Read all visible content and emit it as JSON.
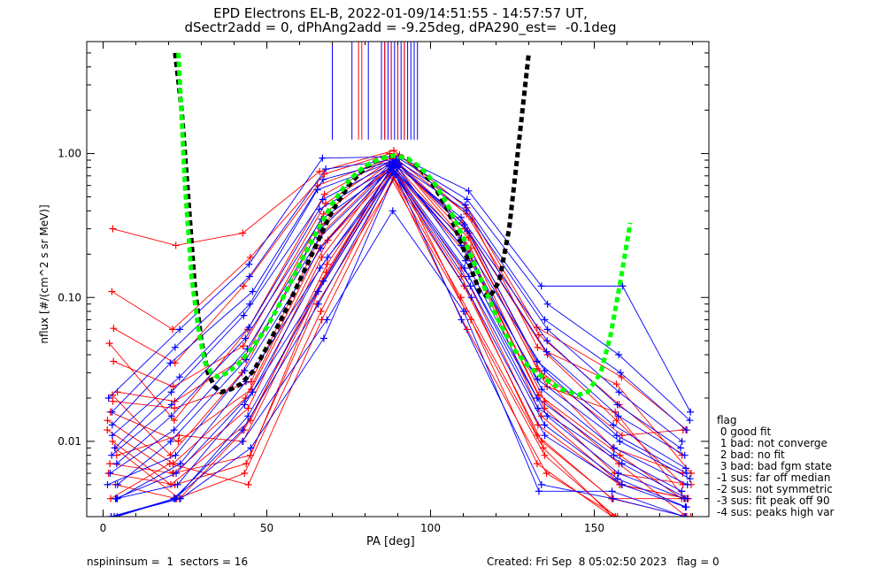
{
  "title": {
    "line1": "EPD Electrons EL-B, 2022-01-09/14:51:55 - 14:57:57 UT,",
    "line2": "dSectr2add = 0, dPhAng2add = -9.25deg, dPA290_est=  -0.1deg"
  },
  "footer": {
    "left": "nspininsum =  1  sectors = 16",
    "right": "Created: Fri Sep  8 05:02:50 2023   flag = 0"
  },
  "legend": {
    "title": "flag",
    "items": [
      " 0 good fit",
      " 1 bad: not converge",
      " 2 bad: no fit",
      " 3 bad: bad fgm state",
      "-1 sus: far off median",
      "-2 sus: not symmetric",
      "-3 sus: fit peak off 90",
      "-4 sus: peaks high var"
    ]
  },
  "colors": {
    "red": "#ff0000",
    "blue": "#0000ff",
    "green": "#00ff00",
    "black": "#000000"
  },
  "chart_data": {
    "type": "line",
    "xlabel": "PA [deg]",
    "ylabel": "nflux [#/(cm^2 s sr MeV)]",
    "xlim": [
      -5,
      185
    ],
    "ylim": [
      0.003,
      6.0
    ],
    "yscale": "log",
    "xticks": [
      0,
      50,
      100,
      150
    ],
    "xtick_labels": [
      "0",
      "50",
      "100",
      "150"
    ],
    "yticks": [
      0.01,
      0.1,
      1.0
    ],
    "ytick_labels": [
      "0.01",
      "0.10",
      "1.00"
    ],
    "pa_bins": [
      3,
      22,
      44,
      67,
      89,
      111,
      134,
      157,
      178
    ],
    "red_series": [
      [
        0.3,
        0.23,
        0.28,
        0.75,
        1.05,
        0.42,
        0.062,
        0.028,
        0.012
      ],
      [
        0.11,
        0.06,
        0.19,
        0.72,
        1.0,
        0.38,
        0.055,
        0.018,
        0.008
      ],
      [
        0.061,
        0.035,
        0.12,
        0.6,
        0.98,
        0.35,
        0.045,
        0.025,
        0.006
      ],
      [
        0.048,
        0.014,
        0.06,
        0.52,
        0.95,
        0.33,
        0.04,
        0.014,
        0.005
      ],
      [
        0.036,
        0.024,
        0.046,
        0.45,
        0.92,
        0.3,
        0.032,
        0.011,
        0.012
      ],
      [
        0.022,
        0.019,
        0.038,
        0.38,
        0.9,
        0.28,
        0.028,
        0.009,
        0.006
      ],
      [
        0.021,
        0.008,
        0.03,
        0.32,
        0.88,
        0.26,
        0.024,
        0.016,
        0.004
      ],
      [
        0.019,
        0.017,
        0.026,
        0.28,
        0.86,
        0.24,
        0.021,
        0.008,
        0.004
      ],
      [
        0.016,
        0.01,
        0.023,
        0.25,
        0.85,
        0.22,
        0.019,
        0.007,
        0.003
      ],
      [
        0.014,
        0.007,
        0.02,
        0.22,
        0.83,
        0.2,
        0.017,
        0.006,
        0.005
      ],
      [
        0.012,
        0.006,
        0.017,
        0.19,
        0.82,
        0.18,
        0.015,
        0.005,
        0.004
      ],
      [
        0.01,
        0.005,
        0.014,
        0.17,
        0.8,
        0.16,
        0.013,
        0.005,
        0.004
      ],
      [
        0.009,
        0.004,
        0.012,
        0.15,
        0.78,
        0.14,
        0.011,
        0.004,
        0.003
      ],
      [
        0.008,
        0.011,
        0.01,
        0.13,
        0.76,
        0.12,
        0.01,
        0.004,
        0.004
      ],
      [
        0.007,
        0.006,
        0.008,
        0.11,
        0.74,
        0.1,
        0.009,
        0.003,
        0.003
      ],
      [
        0.006,
        0.005,
        0.007,
        0.09,
        0.72,
        0.08,
        0.008,
        0.003,
        0.003
      ],
      [
        0.005,
        0.004,
        0.006,
        0.08,
        0.7,
        0.07,
        0.007,
        0.003,
        0.003
      ],
      [
        0.004,
        0.007,
        0.005,
        0.07,
        0.68,
        0.06,
        0.006,
        0.003,
        0.003
      ]
    ],
    "blue_series": [
      [
        0.02,
        0.06,
        0.17,
        0.93,
        0.95,
        0.55,
        0.12,
        0.12,
        0.016
      ],
      [
        0.016,
        0.045,
        0.14,
        0.78,
        0.92,
        0.48,
        0.09,
        0.04,
        0.014
      ],
      [
        0.013,
        0.035,
        0.11,
        0.66,
        0.9,
        0.44,
        0.07,
        0.03,
        0.012
      ],
      [
        0.011,
        0.028,
        0.09,
        0.56,
        0.88,
        0.4,
        0.06,
        0.022,
        0.01
      ],
      [
        0.009,
        0.022,
        0.075,
        0.48,
        0.86,
        0.36,
        0.05,
        0.018,
        0.009
      ],
      [
        0.008,
        0.018,
        0.062,
        0.41,
        0.85,
        0.32,
        0.042,
        0.015,
        0.008
      ],
      [
        0.007,
        0.015,
        0.052,
        0.35,
        0.84,
        0.29,
        0.036,
        0.013,
        0.0065
      ],
      [
        0.006,
        0.012,
        0.044,
        0.3,
        0.83,
        0.26,
        0.031,
        0.011,
        0.006
      ],
      [
        0.005,
        0.01,
        0.037,
        0.26,
        0.82,
        0.23,
        0.027,
        0.01,
        0.0055
      ],
      [
        0.005,
        0.008,
        0.031,
        0.22,
        0.81,
        0.2,
        0.023,
        0.009,
        0.005
      ],
      [
        0.004,
        0.007,
        0.026,
        0.19,
        0.8,
        0.18,
        0.02,
        0.008,
        0.0045
      ],
      [
        0.004,
        0.006,
        0.022,
        0.16,
        0.79,
        0.16,
        0.017,
        0.007,
        0.004
      ],
      [
        0.004,
        0.005,
        0.018,
        0.13,
        0.78,
        0.14,
        0.015,
        0.006,
        0.004
      ],
      [
        0.003,
        0.004,
        0.015,
        0.11,
        0.76,
        0.12,
        0.013,
        0.0055,
        0.0035
      ],
      [
        0.003,
        0.004,
        0.012,
        0.09,
        0.74,
        0.1,
        0.011,
        0.005,
        0.0035
      ],
      [
        0.003,
        0.004,
        0.01,
        0.07,
        0.4,
        0.08,
        0.0045,
        0.0045,
        0.003
      ],
      [
        0.003,
        0.004,
        0.009,
        0.052,
        0.72,
        0.07,
        0.005,
        0.004,
        0.003
      ]
    ],
    "green_fit": {
      "x": [
        23,
        25,
        27,
        29,
        31,
        33,
        35,
        38,
        41,
        45,
        50,
        55,
        60,
        65,
        70,
        75,
        80,
        85,
        89,
        93,
        97,
        101,
        105,
        110,
        115,
        120,
        125,
        130,
        135,
        140,
        145,
        148,
        152,
        155,
        158,
        161
      ],
      "y": [
        5.0,
        0.6,
        0.14,
        0.062,
        0.036,
        0.03,
        0.028,
        0.03,
        0.034,
        0.043,
        0.062,
        0.1,
        0.17,
        0.28,
        0.45,
        0.65,
        0.82,
        0.93,
        0.97,
        0.92,
        0.8,
        0.63,
        0.45,
        0.26,
        0.14,
        0.075,
        0.045,
        0.033,
        0.027,
        0.023,
        0.021,
        0.022,
        0.03,
        0.055,
        0.13,
        0.33
      ]
    },
    "black_fit": {
      "x": [
        22,
        24,
        26,
        28,
        30,
        32,
        34,
        36,
        39,
        42,
        46,
        50,
        55,
        60,
        65,
        70,
        75,
        80,
        85,
        89,
        93,
        97,
        101,
        105,
        110,
        115,
        118,
        121,
        124,
        127,
        130
      ],
      "y": [
        5.0,
        2.0,
        0.5,
        0.12,
        0.05,
        0.03,
        0.024,
        0.022,
        0.023,
        0.025,
        0.031,
        0.045,
        0.075,
        0.13,
        0.23,
        0.4,
        0.6,
        0.8,
        0.93,
        0.97,
        0.92,
        0.78,
        0.6,
        0.42,
        0.22,
        0.11,
        0.1,
        0.13,
        0.3,
        1.2,
        5.0
      ]
    },
    "upper_spikes": {
      "blue_x": [
        70,
        76,
        81,
        85,
        86,
        87,
        88,
        89,
        90,
        91,
        92,
        93,
        94,
        95,
        96
      ],
      "red_x": [
        78,
        79,
        86,
        88,
        90,
        92
      ]
    }
  }
}
